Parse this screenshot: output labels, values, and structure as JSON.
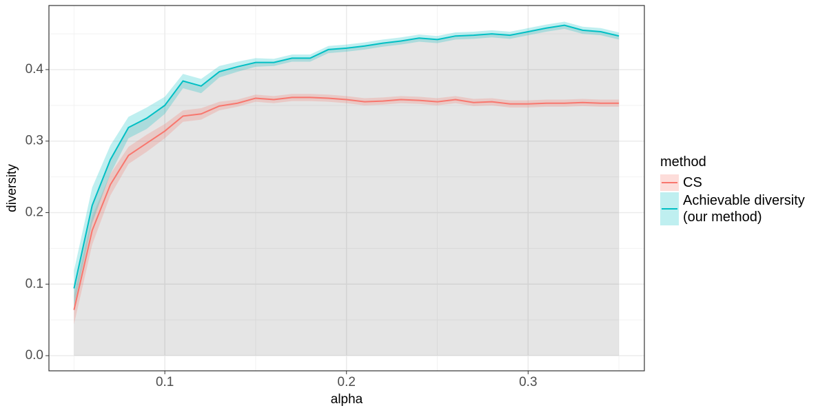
{
  "chart_data": {
    "type": "line",
    "x_label": "alpha",
    "y_label": "diversity",
    "legend_title": "method",
    "x": [
      0.05,
      0.06,
      0.07,
      0.08,
      0.09,
      0.1,
      0.11,
      0.12,
      0.13,
      0.14,
      0.15,
      0.16,
      0.17,
      0.18,
      0.19,
      0.2,
      0.21,
      0.22,
      0.23,
      0.24,
      0.25,
      0.26,
      0.27,
      0.28,
      0.29,
      0.3,
      0.31,
      0.32,
      0.33,
      0.34,
      0.35
    ],
    "series": [
      {
        "name": "CS",
        "color": "#F8766D",
        "values": [
          0.064,
          0.175,
          0.239,
          0.28,
          0.297,
          0.314,
          0.335,
          0.338,
          0.349,
          0.353,
          0.36,
          0.358,
          0.361,
          0.361,
          0.36,
          0.358,
          0.355,
          0.356,
          0.358,
          0.357,
          0.355,
          0.358,
          0.354,
          0.355,
          0.352,
          0.352,
          0.353,
          0.353,
          0.354,
          0.353,
          0.353
        ],
        "lower": [
          0.044,
          0.155,
          0.224,
          0.268,
          0.285,
          0.304,
          0.327,
          0.33,
          0.343,
          0.348,
          0.355,
          0.353,
          0.356,
          0.356,
          0.355,
          0.353,
          0.35,
          0.351,
          0.353,
          0.352,
          0.35,
          0.353,
          0.349,
          0.35,
          0.347,
          0.347,
          0.348,
          0.348,
          0.349,
          0.348,
          0.348
        ],
        "upper": [
          0.084,
          0.195,
          0.254,
          0.292,
          0.309,
          0.324,
          0.343,
          0.346,
          0.355,
          0.358,
          0.365,
          0.363,
          0.366,
          0.366,
          0.365,
          0.363,
          0.36,
          0.361,
          0.363,
          0.362,
          0.36,
          0.363,
          0.359,
          0.36,
          0.357,
          0.357,
          0.358,
          0.358,
          0.359,
          0.358,
          0.358
        ]
      },
      {
        "name": "Achievable diversity\n(our method)",
        "color": "#00BFC4",
        "values": [
          0.094,
          0.21,
          0.274,
          0.319,
          0.332,
          0.35,
          0.384,
          0.377,
          0.397,
          0.404,
          0.41,
          0.41,
          0.416,
          0.416,
          0.428,
          0.43,
          0.433,
          0.437,
          0.44,
          0.444,
          0.442,
          0.447,
          0.448,
          0.45,
          0.448,
          0.453,
          0.458,
          0.462,
          0.455,
          0.453,
          0.447
        ],
        "lower": [
          0.069,
          0.185,
          0.254,
          0.304,
          0.317,
          0.338,
          0.374,
          0.367,
          0.389,
          0.397,
          0.404,
          0.405,
          0.411,
          0.411,
          0.423,
          0.425,
          0.428,
          0.432,
          0.435,
          0.439,
          0.437,
          0.442,
          0.443,
          0.445,
          0.443,
          0.448,
          0.453,
          0.457,
          0.45,
          0.448,
          0.442
        ],
        "upper": [
          0.119,
          0.235,
          0.294,
          0.334,
          0.347,
          0.362,
          0.394,
          0.387,
          0.405,
          0.411,
          0.416,
          0.415,
          0.421,
          0.421,
          0.433,
          0.435,
          0.438,
          0.442,
          0.445,
          0.449,
          0.447,
          0.452,
          0.453,
          0.455,
          0.453,
          0.458,
          0.463,
          0.467,
          0.46,
          0.458,
          0.452
        ]
      }
    ],
    "xlim": [
      0.0362,
      0.364
    ],
    "ylim": [
      -0.0212,
      0.4896
    ],
    "xticks": [
      0.1,
      0.2,
      0.3
    ],
    "yticks": [
      {
        "value": 0,
        "label": "0.0"
      },
      0.1,
      0.2,
      0.3,
      0.4
    ],
    "xminor": [
      0.05,
      0.15,
      0.25,
      0.35
    ],
    "yminor": [
      0.05,
      0.15,
      0.25,
      0.35,
      0.45
    ],
    "grid": true
  }
}
